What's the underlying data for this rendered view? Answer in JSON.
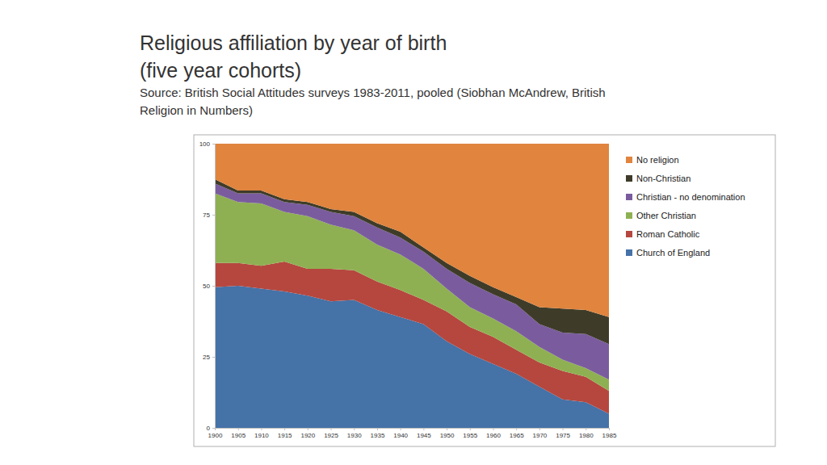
{
  "chart_data": {
    "type": "area",
    "stacked": true,
    "title": [
      "Religious affiliation by year of birth",
      "(five year cohorts)"
    ],
    "subtitle": [
      "Source: British Social Attitudes surveys 1983-2011, pooled (Siobhan McAndrew, British",
      "Religion in Numbers)"
    ],
    "x": [
      1900,
      1905,
      1910,
      1915,
      1920,
      1925,
      1930,
      1935,
      1940,
      1945,
      1950,
      1955,
      1960,
      1965,
      1970,
      1975,
      1980,
      1985
    ],
    "xlim": [
      1900,
      1985
    ],
    "xticks": [
      1900,
      1905,
      1910,
      1915,
      1920,
      1925,
      1930,
      1935,
      1940,
      1945,
      1950,
      1955,
      1960,
      1965,
      1970,
      1975,
      1980,
      1985
    ],
    "ylim": [
      0,
      100
    ],
    "yticks": [
      0,
      25,
      50,
      75,
      100
    ],
    "grid": false,
    "legend": "right",
    "series": [
      {
        "name": "Church of England",
        "color": "#4572a7",
        "values": [
          49.5,
          50,
          49,
          48,
          46.5,
          44.5,
          45,
          41.5,
          39,
          36.5,
          30.5,
          26,
          22.5,
          19,
          14.5,
          10,
          9,
          5
        ]
      },
      {
        "name": "Roman Catholic",
        "color": "#b5473f",
        "values": [
          8.5,
          8,
          8,
          10.5,
          9.5,
          11.5,
          10.5,
          10,
          9.5,
          8.5,
          10.5,
          9.5,
          9.5,
          8.5,
          8.5,
          10,
          9,
          8
        ]
      },
      {
        "name": "Other Christian",
        "color": "#8fb052",
        "values": [
          24.5,
          21.5,
          22,
          17.5,
          18.5,
          15.5,
          14,
          13,
          12.5,
          11,
          8,
          7,
          6.5,
          6.5,
          5.5,
          4,
          3,
          4
        ]
      },
      {
        "name": "Christian - no denomination",
        "color": "#7a5c9e",
        "values": [
          3.5,
          3,
          3.5,
          3.5,
          4,
          4.5,
          5,
          6,
          6,
          6,
          7,
          8.5,
          8.5,
          9.5,
          8,
          9.5,
          12,
          12.5
        ]
      },
      {
        "name": "Non-Christian",
        "color": "#3e3c29",
        "values": [
          1.5,
          1,
          1,
          1,
          1,
          1,
          1.5,
          1.5,
          2,
          1.5,
          2,
          2.5,
          2.5,
          2.5,
          6,
          8.5,
          8.5,
          9.5
        ]
      },
      {
        "name": "No religion",
        "color": "#e0843e",
        "values": [
          12.5,
          16.5,
          16.5,
          19.5,
          20.5,
          23,
          24,
          28,
          31,
          36.5,
          42,
          46.5,
          50.5,
          54,
          57.5,
          58,
          58.5,
          61
        ]
      }
    ]
  }
}
